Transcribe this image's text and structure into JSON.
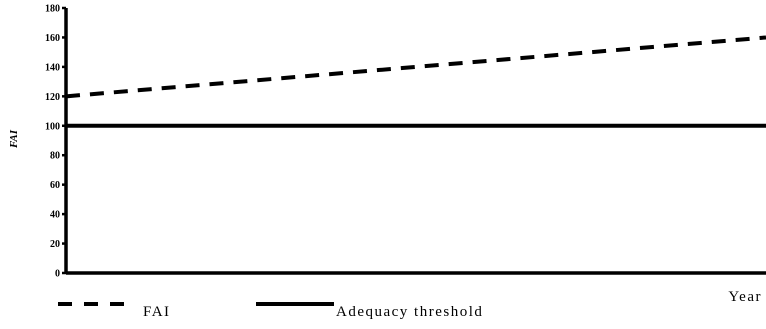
{
  "chart_data": {
    "type": "line",
    "title": "",
    "xlabel": "Year",
    "ylabel": "FAI",
    "ylim": [
      0,
      180
    ],
    "yticks": [
      0,
      20,
      40,
      60,
      80,
      100,
      120,
      140,
      160,
      180
    ],
    "grid": false,
    "legend_position": "bottom-left",
    "series": [
      {
        "name": "FAI",
        "style": "dashed",
        "color": "#000000",
        "x": [
          0,
          1
        ],
        "values": [
          120,
          160
        ]
      },
      {
        "name": "Adequacy threshold",
        "style": "solid",
        "color": "#000000",
        "x": [
          0,
          1
        ],
        "values": [
          100,
          100
        ]
      }
    ]
  }
}
